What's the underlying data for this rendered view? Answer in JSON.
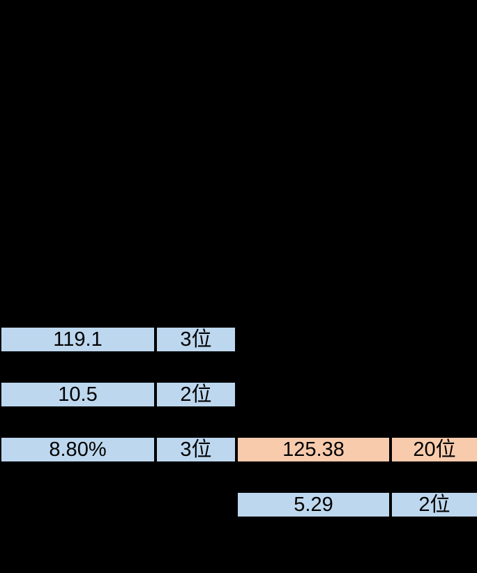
{
  "background_color": "#000000",
  "colors": {
    "cell_blue": "#BDD7EE",
    "cell_orange": "#F8CBAD",
    "cell_border": "#000000",
    "cell_text": "#000000"
  },
  "table": {
    "pairs": [
      {
        "value": "119.1",
        "rank": "3位",
        "fill": "blue"
      },
      {
        "value": "10.5",
        "rank": "2位",
        "fill": "blue"
      },
      {
        "value": "8.80%",
        "rank": "3位",
        "fill": "blue"
      },
      {
        "value": "125.38",
        "rank": "20位",
        "fill": "orange"
      },
      {
        "value": "5.29",
        "rank": "2位",
        "fill": "blue"
      }
    ]
  }
}
